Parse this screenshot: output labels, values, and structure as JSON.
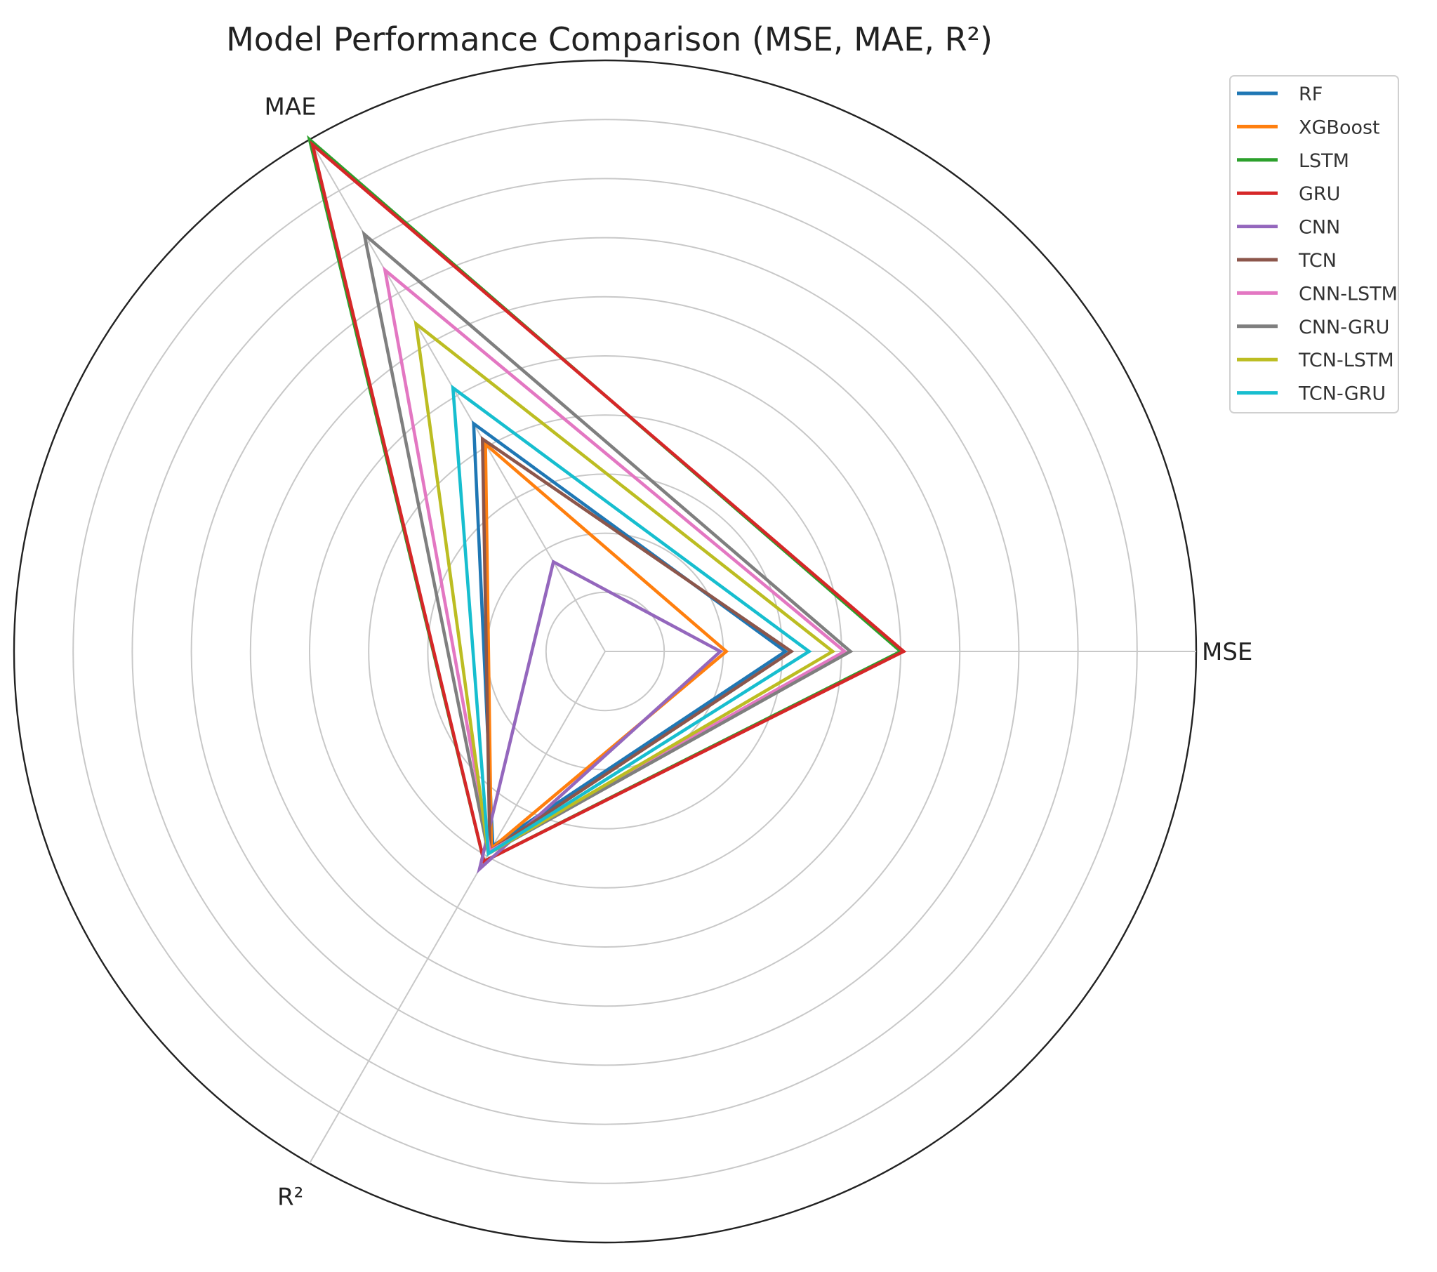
{
  "chart_data": {
    "type": "radar",
    "title": "Model Performance Comparison (MSE, MAE, R²)",
    "axes": [
      "MSE",
      "MAE",
      "R²"
    ],
    "rlim": [
      0,
      10
    ],
    "grid_rings": [
      1,
      2,
      3,
      4,
      5,
      6,
      7,
      8,
      9,
      10
    ],
    "grid": true,
    "legend_position": "top-right",
    "series": [
      {
        "name": "RF",
        "color": "#1f77b4",
        "values": [
          3.05,
          4.45,
          3.8
        ]
      },
      {
        "name": "XGBoost",
        "color": "#ff7f0e",
        "values": [
          2.05,
          4.05,
          3.85
        ]
      },
      {
        "name": "LSTM",
        "color": "#2ca02c",
        "values": [
          5.0,
          10.0,
          4.1
        ]
      },
      {
        "name": "GRU",
        "color": "#d62728",
        "values": [
          5.05,
          9.9,
          4.1
        ]
      },
      {
        "name": "CNN",
        "color": "#9467bd",
        "values": [
          1.95,
          1.75,
          4.25
        ]
      },
      {
        "name": "TCN",
        "color": "#8c564b",
        "values": [
          3.15,
          4.15,
          3.9
        ]
      },
      {
        "name": "CNN-LSTM",
        "color": "#e377c2",
        "values": [
          4.05,
          7.45,
          3.9
        ]
      },
      {
        "name": "CNN-GRU",
        "color": "#7f7f7f",
        "values": [
          4.15,
          8.15,
          3.95
        ]
      },
      {
        "name": "TCN-LSTM",
        "color": "#bcbd22",
        "values": [
          3.85,
          6.4,
          3.95
        ]
      },
      {
        "name": "TCN-GRU",
        "color": "#17becf",
        "values": [
          3.45,
          5.15,
          3.95
        ]
      }
    ]
  }
}
